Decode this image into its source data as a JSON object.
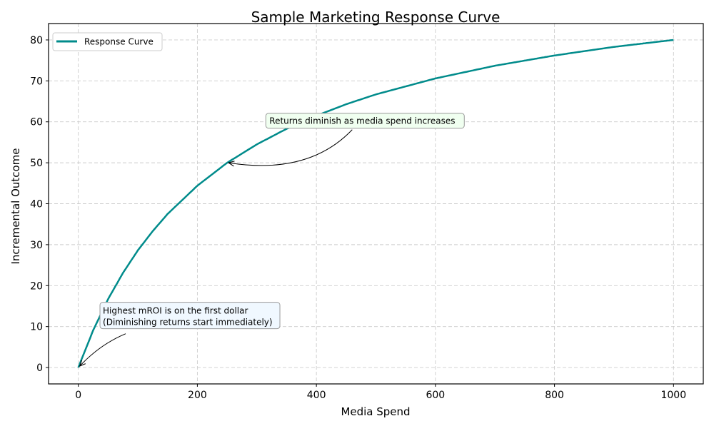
{
  "chart_data": {
    "type": "line",
    "title": "Sample Marketing Response Curve",
    "xlabel": "Media Spend",
    "ylabel": "Incremental Outcome",
    "xlim": [
      -50,
      1050
    ],
    "ylim": [
      -4,
      84
    ],
    "xticks": [
      0,
      200,
      400,
      600,
      800,
      1000
    ],
    "yticks": [
      0,
      10,
      20,
      30,
      40,
      50,
      60,
      70,
      80
    ],
    "grid": true,
    "legend_position": "top-left",
    "series": [
      {
        "name": "Response Curve",
        "color": "#008b8b",
        "x": [
          0,
          25,
          50,
          75,
          100,
          125,
          150,
          200,
          250,
          300,
          350,
          400,
          450,
          500,
          600,
          700,
          800,
          900,
          1000
        ],
        "y": [
          0,
          9.1,
          16.7,
          23.1,
          28.6,
          33.3,
          37.5,
          44.4,
          50.0,
          54.5,
          58.3,
          61.5,
          64.3,
          66.7,
          70.6,
          73.7,
          76.2,
          78.3,
          80.0
        ]
      }
    ],
    "annotations": [
      {
        "text": "Returns diminish as media spend increases",
        "point": [
          250,
          50
        ],
        "text_position": [
          315,
          60
        ],
        "box_color": "#f0fff0"
      },
      {
        "text_lines": [
          "Highest mROI is on the first dollar",
          "(Diminishing returns start immediately)"
        ],
        "point": [
          0,
          0
        ],
        "text_position": [
          40,
          10
        ],
        "box_color": "#f0f8ff"
      }
    ]
  }
}
